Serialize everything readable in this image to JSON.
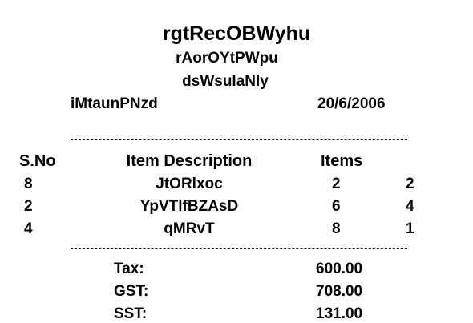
{
  "receipt": {
    "title": "rgtRecOBWyhu",
    "subtitle1": "rAorOYtPWpu",
    "subtitle2": "dsWsulaNly",
    "store": "iMtaunPNzd",
    "date": "20/6/2006",
    "headers": {
      "sno": "S.No",
      "description": "Item Description",
      "items": "Items",
      "extra": ""
    },
    "rows": [
      {
        "sno": "8",
        "description": "JtORlxoc",
        "items": "2",
        "extra": "2"
      },
      {
        "sno": "2",
        "description": "YpVTlfBZAsD",
        "items": "6",
        "extra": "4"
      },
      {
        "sno": "4",
        "description": "qMRvT",
        "items": "8",
        "extra": "1"
      }
    ],
    "totals": [
      {
        "label": "Tax:",
        "value": "600.00"
      },
      {
        "label": "GST:",
        "value": "708.00"
      },
      {
        "label": "SST:",
        "value": "131.00"
      }
    ]
  }
}
